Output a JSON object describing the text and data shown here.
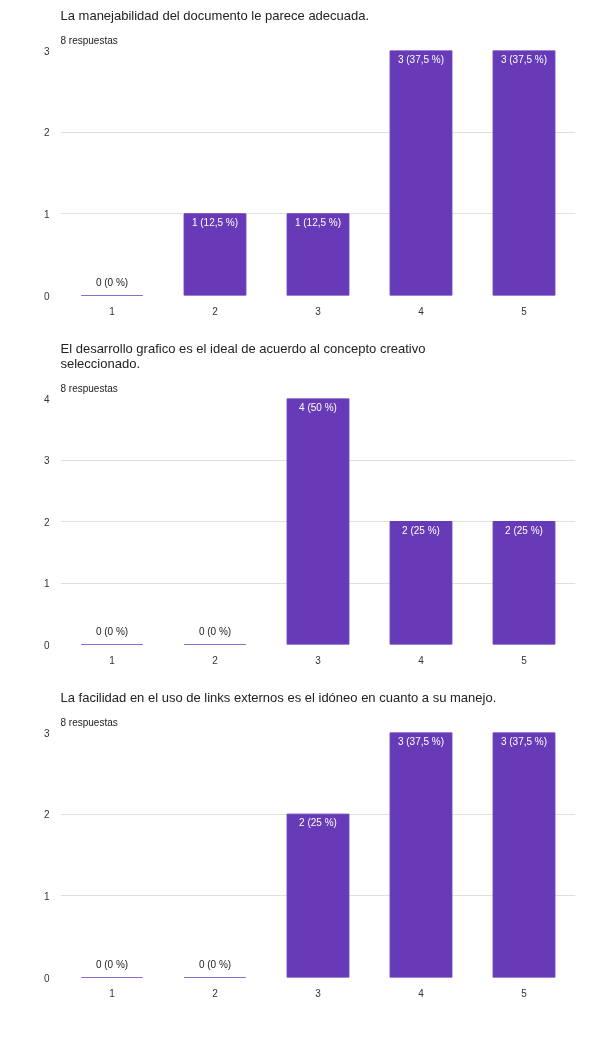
{
  "chart_data": [
    {
      "type": "bar",
      "title": "La manejabilidad del documento le parece adecuada.",
      "subtitle": "8 respuestas",
      "categories": [
        "1",
        "2",
        "3",
        "4",
        "5"
      ],
      "values": [
        0,
        1,
        1,
        3,
        3
      ],
      "value_labels": [
        "0 (0 %)",
        "1 (12,5 %)",
        "1 (12,5 %)",
        "3 (37,5 %)",
        "3 (37,5 %)"
      ],
      "color": "#673ab7",
      "ylim": [
        0,
        3
      ],
      "yticks": [
        0,
        1,
        2,
        3
      ],
      "grid": "y"
    },
    {
      "type": "bar",
      "title": "El desarrollo grafico es el ideal de acuerdo al concepto creativo seleccionado.",
      "subtitle": "8 respuestas",
      "categories": [
        "1",
        "2",
        "3",
        "4",
        "5"
      ],
      "values": [
        0,
        0,
        4,
        2,
        2
      ],
      "value_labels": [
        "0 (0 %)",
        "0 (0 %)",
        "4 (50 %)",
        "2 (25 %)",
        "2 (25 %)"
      ],
      "color": "#673ab7",
      "ylim": [
        0,
        4
      ],
      "yticks": [
        0,
        1,
        2,
        3,
        4
      ],
      "grid": "y"
    },
    {
      "type": "bar",
      "title": "La facilidad en el uso de links externos es el idóneo en cuanto a su manejo.",
      "subtitle": "8 respuestas",
      "categories": [
        "1",
        "2",
        "3",
        "4",
        "5"
      ],
      "values": [
        0,
        0,
        2,
        3,
        3
      ],
      "value_labels": [
        "0 (0 %)",
        "0 (0 %)",
        "2 (25 %)",
        "3 (37,5 %)",
        "3 (37,5 %)"
      ],
      "color": "#673ab7",
      "ylim": [
        0,
        3
      ],
      "yticks": [
        0,
        1,
        2,
        3
      ],
      "grid": "y"
    }
  ]
}
